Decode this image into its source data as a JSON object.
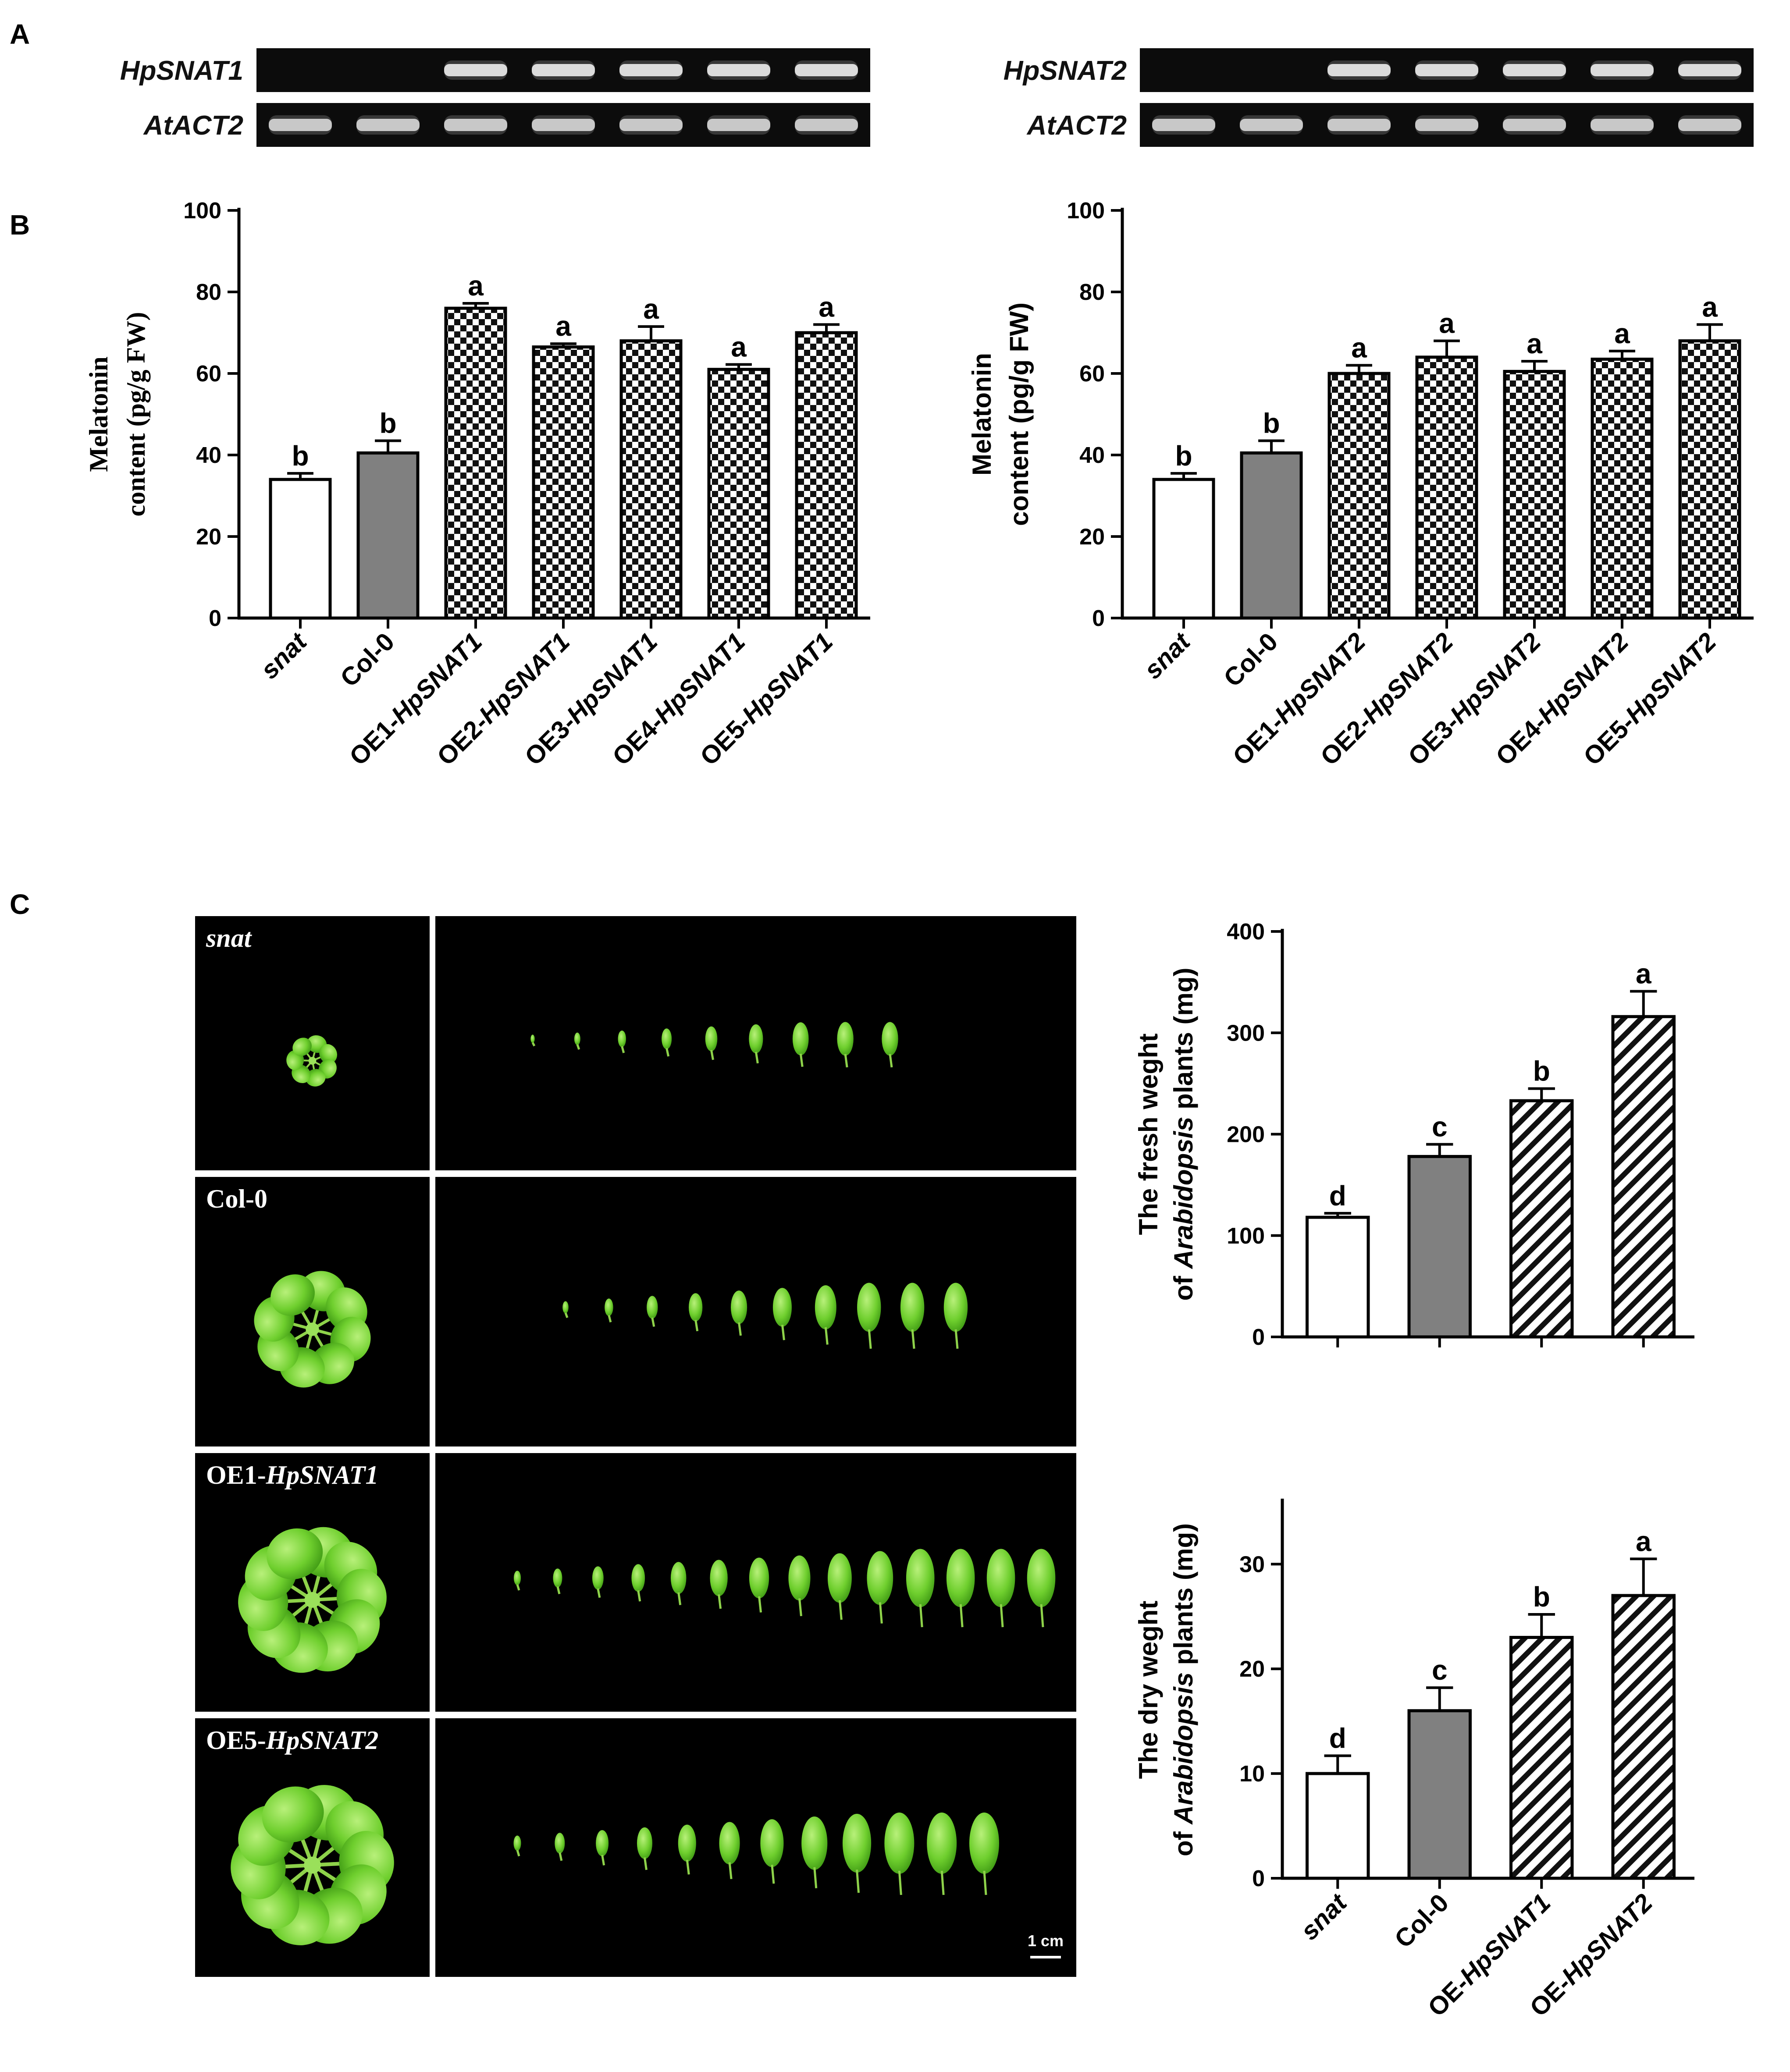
{
  "panel_labels": {
    "a": "A",
    "b": "B",
    "c": "C"
  },
  "gels": [
    {
      "gene": "HpSNAT1",
      "ref": "AtACT2",
      "lanes": 7,
      "gene_bands": [
        0,
        0,
        1,
        1,
        1,
        1,
        1
      ],
      "ref_bands": [
        1,
        1,
        1,
        1,
        1,
        1,
        1
      ]
    },
    {
      "gene": "HpSNAT2",
      "ref": "AtACT2",
      "lanes": 7,
      "gene_bands": [
        0,
        0,
        1,
        1,
        1,
        1,
        1
      ],
      "ref_bands": [
        1,
        1,
        1,
        1,
        1,
        1,
        1
      ]
    }
  ],
  "photos": {
    "rows": [
      {
        "label_plain": "",
        "label_italic": "snat",
        "leaf_count": 9
      },
      {
        "label_plain": "Col-0",
        "label_italic": "",
        "leaf_count": 10
      },
      {
        "label_plain": "OE1-",
        "label_italic": "HpSNAT1",
        "leaf_count": 14
      },
      {
        "label_plain": "OE5-",
        "label_italic": "HpSNAT2",
        "leaf_count": 12
      }
    ],
    "scale_bar": "1 cm"
  },
  "chart_data": [
    {
      "type": "bar",
      "id": "melatonin-snat1",
      "ylabel_line1": "Melatonin",
      "ylabel_line2": "content (pg/g FW)",
      "ylim": [
        0,
        100
      ],
      "yticks": [
        0,
        20,
        40,
        60,
        80,
        100
      ],
      "categories": [
        {
          "plain": "",
          "italic": "snat"
        },
        {
          "plain": "Col-0",
          "italic": ""
        },
        {
          "plain": "OE1-",
          "italic": "HpSNAT1"
        },
        {
          "plain": "OE2-",
          "italic": "HpSNAT1"
        },
        {
          "plain": "OE3-",
          "italic": "HpSNAT1"
        },
        {
          "plain": "OE4-",
          "italic": "HpSNAT1"
        },
        {
          "plain": "OE5-",
          "italic": "HpSNAT1"
        }
      ],
      "values": [
        34,
        40.5,
        76,
        66.5,
        68,
        61,
        70
      ],
      "errors": [
        1.5,
        3,
        1.2,
        0.8,
        3.5,
        1.2,
        2
      ],
      "letters": [
        "b",
        "b",
        "a",
        "a",
        "a",
        "a",
        "a"
      ],
      "fills": [
        "white",
        "gray",
        "checker",
        "checker",
        "checker",
        "checker",
        "checker"
      ]
    },
    {
      "type": "bar",
      "id": "melatonin-snat2",
      "ylabel_line1": "Melatonin",
      "ylabel_line2": "content (pg/g FW)",
      "ylim": [
        0,
        100
      ],
      "yticks": [
        0,
        20,
        40,
        60,
        80,
        100
      ],
      "categories": [
        {
          "plain": "",
          "italic": "snat"
        },
        {
          "plain": "Col-0",
          "italic": ""
        },
        {
          "plain": "OE1-",
          "italic": "HpSNAT2"
        },
        {
          "plain": "OE2-",
          "italic": "HpSNAT2"
        },
        {
          "plain": "OE3-",
          "italic": "HpSNAT2"
        },
        {
          "plain": "OE4-",
          "italic": "HpSNAT2"
        },
        {
          "plain": "OE5-",
          "italic": "HpSNAT2"
        }
      ],
      "values": [
        34,
        40.5,
        60,
        64,
        60.5,
        63.5,
        68
      ],
      "errors": [
        1.5,
        3,
        2,
        4,
        2.5,
        2,
        4
      ],
      "letters": [
        "b",
        "b",
        "a",
        "a",
        "a",
        "a",
        "a"
      ],
      "fills": [
        "white",
        "gray",
        "checker",
        "checker",
        "checker",
        "checker",
        "checker"
      ]
    },
    {
      "type": "bar",
      "id": "fresh-weight",
      "ylabel_line1": "The fresh weght",
      "ylabel_line2_pre": "of ",
      "ylabel_line2_italic": "Arabidopsis",
      "ylabel_line2_post": " plants (mg)",
      "ylim": [
        0,
        400
      ],
      "yticks": [
        0,
        100,
        200,
        300,
        400
      ],
      "categories": [
        {
          "plain": "",
          "italic": "snat"
        },
        {
          "plain": "Col-0",
          "italic": ""
        },
        {
          "plain": "OE-",
          "italic": "HpSNAT1"
        },
        {
          "plain": "OE-",
          "italic": "HpSNAT2"
        }
      ],
      "show_categories": false,
      "values": [
        118,
        178,
        233,
        316
      ],
      "errors": [
        4,
        12,
        12,
        25
      ],
      "letters": [
        "d",
        "c",
        "b",
        "a"
      ],
      "fills": [
        "white",
        "gray",
        "hatch",
        "hatch"
      ]
    },
    {
      "type": "bar",
      "id": "dry-weight",
      "ylabel_line1": "The dry weght",
      "ylabel_line2_pre": "of ",
      "ylabel_line2_italic": "Arabidopsis",
      "ylabel_line2_post": " plants (mg)",
      "ylim": [
        0,
        36
      ],
      "yticks": [
        0,
        10,
        20,
        30
      ],
      "categories": [
        {
          "plain": "",
          "italic": "snat"
        },
        {
          "plain": "Col-0",
          "italic": ""
        },
        {
          "plain": "OE-",
          "italic": "HpSNAT1"
        },
        {
          "plain": "OE-",
          "italic": "HpSNAT2"
        }
      ],
      "show_categories": true,
      "values": [
        10,
        16,
        23,
        27
      ],
      "errors": [
        1.7,
        2.2,
        2.2,
        3.5
      ],
      "letters": [
        "d",
        "c",
        "b",
        "a"
      ],
      "fills": [
        "white",
        "gray",
        "hatch",
        "hatch"
      ]
    }
  ]
}
